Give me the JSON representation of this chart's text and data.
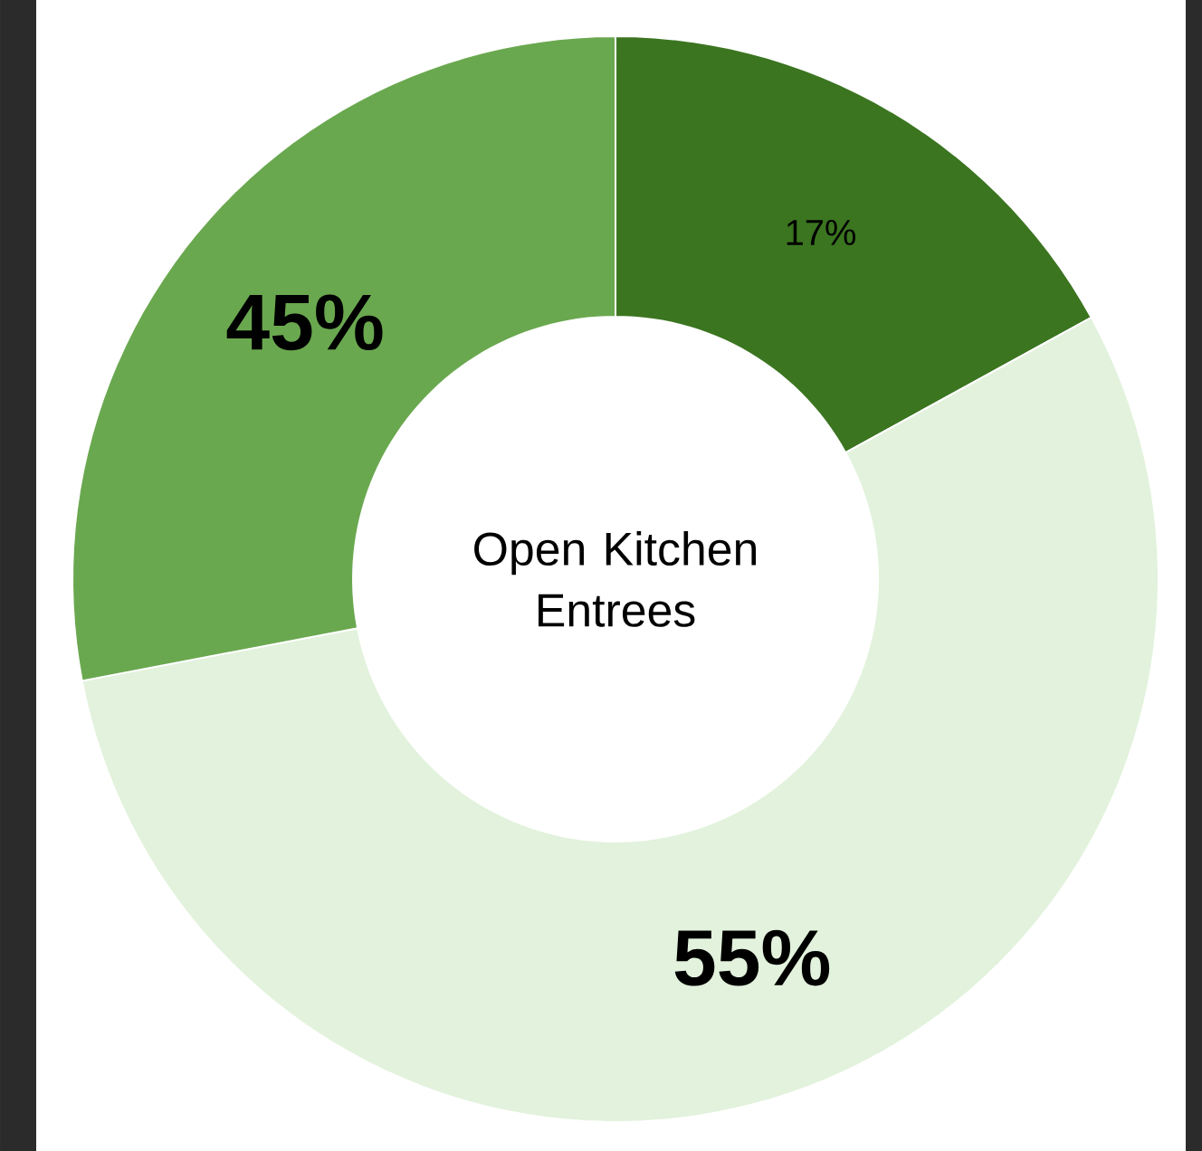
{
  "chart_data": {
    "type": "donut",
    "title": "Open Kitchen Entrees",
    "categories": [
      null,
      null,
      null
    ],
    "values": [
      17,
      55,
      28
    ],
    "colors": [
      "#3b7520",
      "#e2f2dc",
      "#6aa84f"
    ],
    "value_labels": [
      "17%",
      "55%",
      null
    ],
    "annotations": [
      "45%"
    ]
  }
}
